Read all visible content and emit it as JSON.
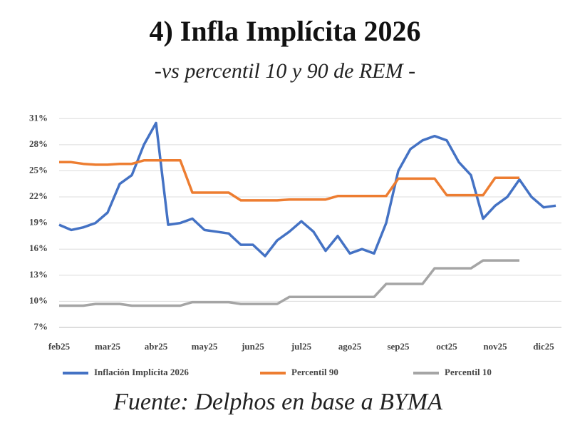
{
  "chart_data": {
    "type": "line",
    "title": "4) Infla Implícita 2026",
    "subtitle": "-vs percentil 10 y 90 de REM -",
    "source": "Fuente: Delphos en base a BYMA",
    "categories": [
      "feb25",
      null,
      null,
      null,
      "mar25",
      null,
      null,
      null,
      "abr25",
      null,
      null,
      null,
      "may25",
      null,
      null,
      null,
      "jun25",
      null,
      null,
      null,
      "jul25",
      null,
      null,
      null,
      "ago25",
      null,
      null,
      null,
      "sep25",
      null,
      null,
      null,
      "oct25",
      null,
      null,
      null,
      "nov25",
      null,
      null,
      null,
      "dic25",
      null
    ],
    "ylim": [
      7,
      32.5
    ],
    "yticks": [
      {
        "value": 7,
        "label": "7%"
      },
      {
        "value": 10,
        "label": "10%"
      },
      {
        "value": 13,
        "label": "13%"
      },
      {
        "value": 16,
        "label": "16%"
      },
      {
        "value": 19,
        "label": "19%"
      },
      {
        "value": 22,
        "label": "22%"
      },
      {
        "value": 25,
        "label": "25%"
      },
      {
        "value": 28,
        "label": "28%"
      },
      {
        "value": 31,
        "label": "31%"
      }
    ],
    "grid": true,
    "legend": "bottom",
    "series": [
      {
        "name": "Inflación Implícita 2026",
        "color": "#4472c4",
        "values": [
          18.8,
          18.2,
          18.5,
          19.0,
          20.2,
          23.5,
          24.5,
          28.0,
          30.5,
          18.8,
          19.0,
          19.5,
          18.2,
          18.0,
          17.8,
          16.5,
          16.5,
          15.2,
          17.0,
          18.0,
          19.2,
          18.0,
          15.8,
          17.5,
          15.5,
          16.0,
          15.5,
          19.0,
          25.0,
          27.5,
          28.5,
          29.0,
          28.5,
          26.0,
          24.5,
          19.5,
          21.0,
          22.0,
          24.0,
          22.0,
          20.8,
          21.0
        ]
      },
      {
        "name": "Percentil 90",
        "color": "#ed7d31",
        "values": [
          26.0,
          26.0,
          25.8,
          25.7,
          25.7,
          25.8,
          25.8,
          26.2,
          26.2,
          26.2,
          26.2,
          22.5,
          22.5,
          22.5,
          22.5,
          21.6,
          21.6,
          21.6,
          21.6,
          21.7,
          21.7,
          21.7,
          21.7,
          22.1,
          22.1,
          22.1,
          22.1,
          22.1,
          24.1,
          24.1,
          24.1,
          24.1,
          22.2,
          22.2,
          22.2,
          22.2,
          24.2,
          24.2,
          24.2,
          null,
          null,
          null
        ]
      },
      {
        "name": "Percentil 10",
        "color": "#a5a5a5",
        "values": [
          9.5,
          9.5,
          9.5,
          9.7,
          9.7,
          9.7,
          9.5,
          9.5,
          9.5,
          9.5,
          9.5,
          9.9,
          9.9,
          9.9,
          9.9,
          9.7,
          9.7,
          9.7,
          9.7,
          10.5,
          10.5,
          10.5,
          10.5,
          10.5,
          10.5,
          10.5,
          10.5,
          12.0,
          12.0,
          12.0,
          12.0,
          13.8,
          13.8,
          13.8,
          13.8,
          14.7,
          14.7,
          14.7,
          14.7,
          null,
          null,
          null
        ]
      }
    ]
  }
}
